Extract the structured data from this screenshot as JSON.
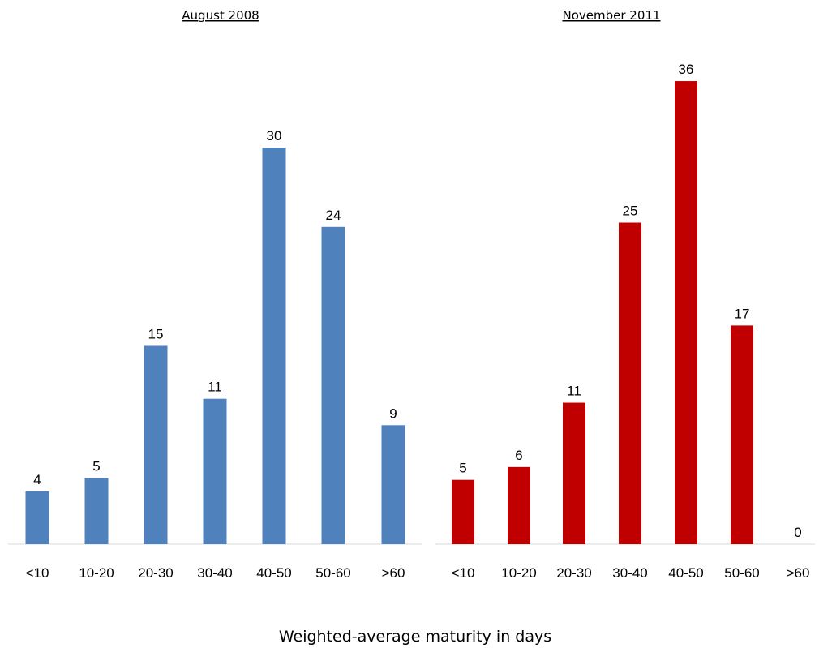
{
  "chart_data": [
    {
      "type": "bar",
      "title": "August 2008",
      "categories": [
        "<10",
        "10-20",
        "20-30",
        "30-40",
        "40-50",
        "50-60",
        ">60"
      ],
      "values": [
        4,
        5,
        15,
        11,
        30,
        24,
        9
      ],
      "color": "#4f81bd",
      "data_labels": true,
      "grid": false
    },
    {
      "type": "bar",
      "title": "November 2011",
      "categories": [
        "<10",
        "10-20",
        "20-30",
        "30-40",
        "40-50",
        "50-60",
        ">60"
      ],
      "values": [
        5,
        6,
        11,
        25,
        36,
        17,
        0
      ],
      "color": "#c00000",
      "data_labels": true,
      "grid": false
    }
  ],
  "xlabel": "Weighted-average maturity in days"
}
